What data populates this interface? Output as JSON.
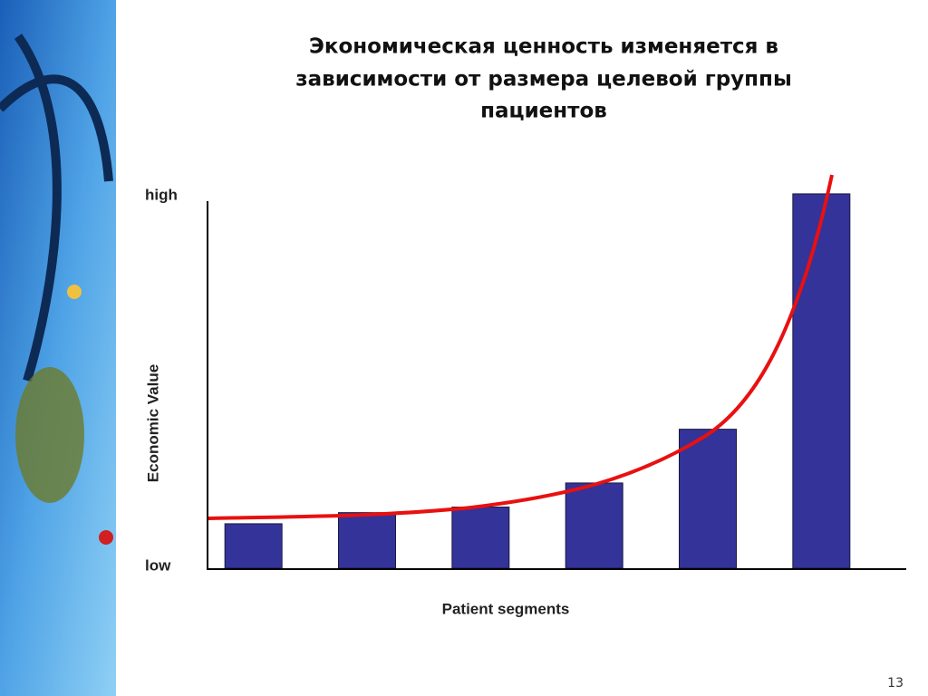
{
  "chart_data": {
    "type": "bar",
    "title": [
      "Экономическая ценность изменяется  в",
      "зависимости от размера целевой группы",
      "пациентов"
    ],
    "xlabel": "Patient segments",
    "ylabel": "Economic Value",
    "categories": [
      null,
      null,
      null,
      null,
      null,
      null
    ],
    "values": [
      12,
      15,
      16.5,
      23,
      37.5,
      101
    ],
    "color": "#333399",
    "ylim": [
      0,
      100
    ],
    "yticks": [
      {
        "value": 0,
        "label": "low"
      },
      {
        "value": 100,
        "label": "high"
      }
    ],
    "grid": false
  },
  "page_number": "13"
}
